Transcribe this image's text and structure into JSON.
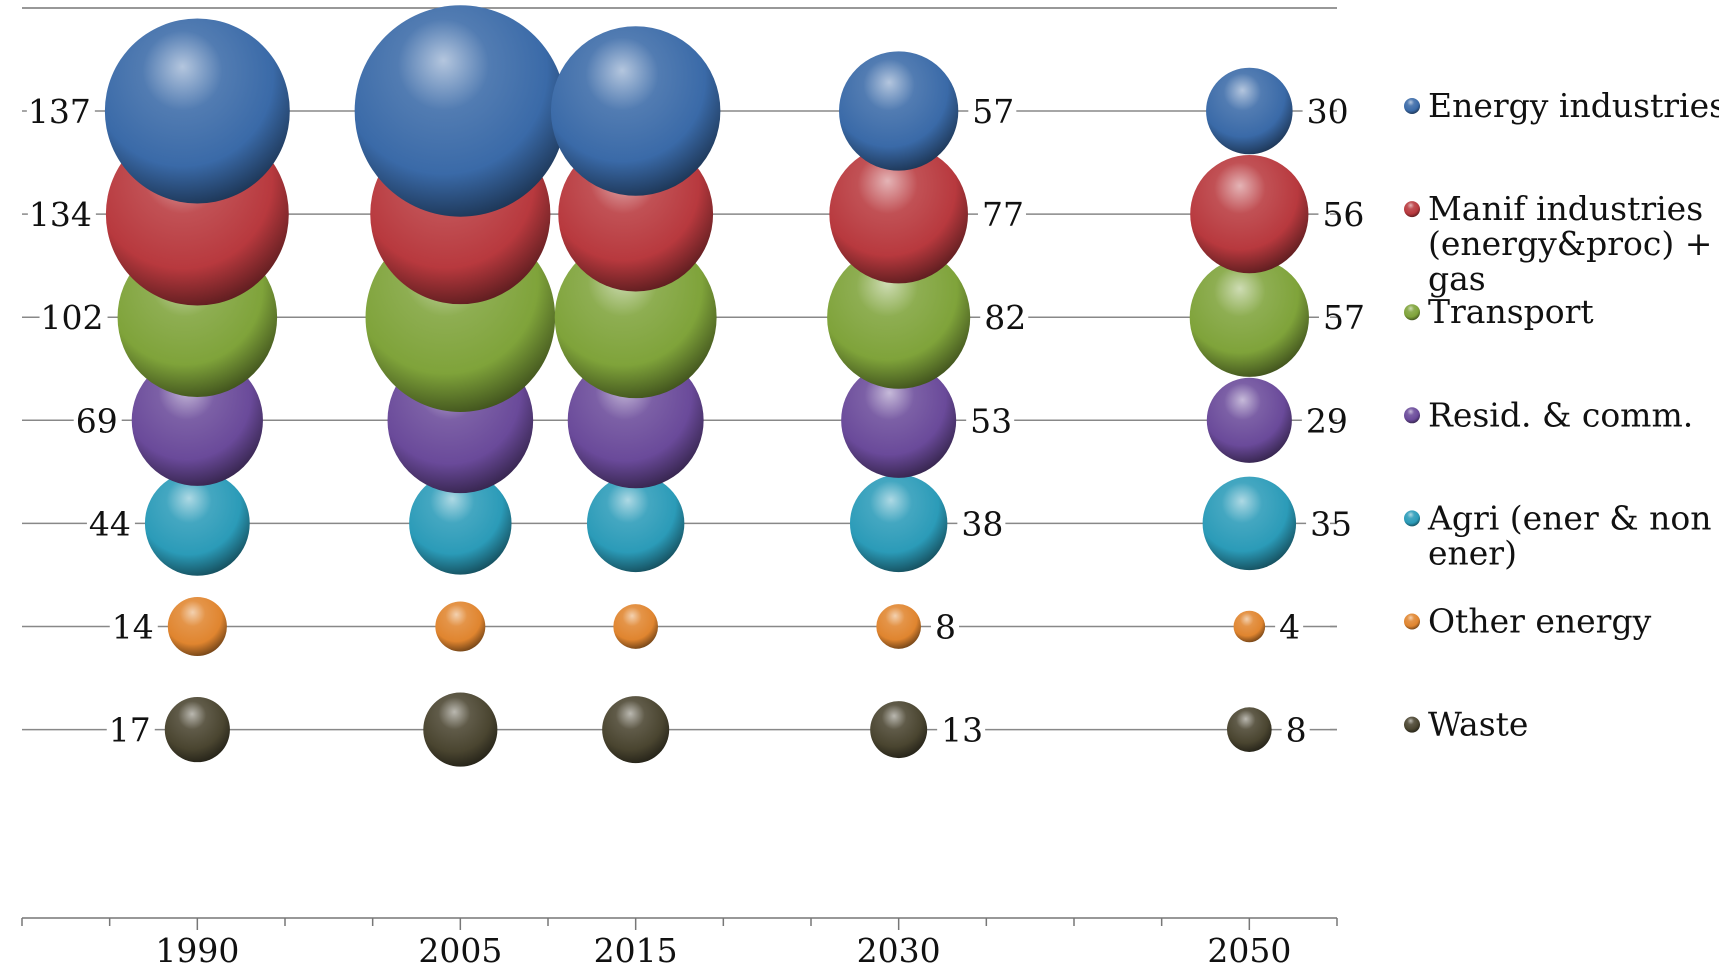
{
  "chart_data": {
    "type": "bubble",
    "x": [
      1990,
      2005,
      2015,
      2030,
      2050
    ],
    "x_tick_labels": [
      "1990",
      "2005",
      "2015",
      "2030",
      "2050"
    ],
    "xlim": [
      1980,
      2055
    ],
    "grid": false,
    "legend_position": "right",
    "series": [
      {
        "name": "Energy industries",
        "color": "#3a6aa8",
        "values": [
          137,
          179,
          115,
          57,
          30
        ],
        "printed_labels": [
          "137",
          "",
          "",
          "57",
          "30"
        ]
      },
      {
        "name": "Manif industries (energy&proc) + F-gas",
        "legend_lines": [
          "Manif industries",
          "(energy&proc) + F-",
          "gas"
        ],
        "color": "#b8393e",
        "values": [
          134,
          130,
          96,
          77,
          56
        ],
        "printed_labels": [
          "134",
          "",
          "",
          "77",
          "56"
        ]
      },
      {
        "name": "Transport",
        "legend_lines": [
          "Transport"
        ],
        "color": "#7fa33a",
        "values": [
          102,
          144,
          105,
          82,
          57
        ],
        "printed_labels": [
          "102",
          "",
          "",
          "82",
          "57"
        ]
      },
      {
        "name": "Resid. & comm.",
        "legend_lines": [
          "Resid. & comm."
        ],
        "color": "#6a4a9a",
        "values": [
          69,
          85,
          74,
          53,
          29
        ],
        "printed_labels": [
          "69",
          "",
          "",
          "53",
          "29"
        ]
      },
      {
        "name": "Agri (ener & non ener)",
        "legend_lines": [
          "Agri (ener & non",
          "ener)"
        ],
        "color": "#2b9bb8",
        "values": [
          44,
          42,
          38,
          38,
          35
        ],
        "printed_labels": [
          "44",
          "",
          "",
          "38",
          "35"
        ]
      },
      {
        "name": "Other energy",
        "legend_lines": [
          "Other energy"
        ],
        "color": "#e0852f",
        "values": [
          14,
          10,
          8,
          8,
          4
        ],
        "printed_labels": [
          "14",
          "",
          "",
          "8",
          "4"
        ]
      },
      {
        "name": "Waste",
        "legend_lines": [
          "Waste"
        ],
        "color": "#4a4530",
        "values": [
          17,
          22,
          18,
          13,
          8
        ],
        "printed_labels": [
          "17",
          "",
          "",
          "13",
          "8"
        ]
      }
    ]
  }
}
